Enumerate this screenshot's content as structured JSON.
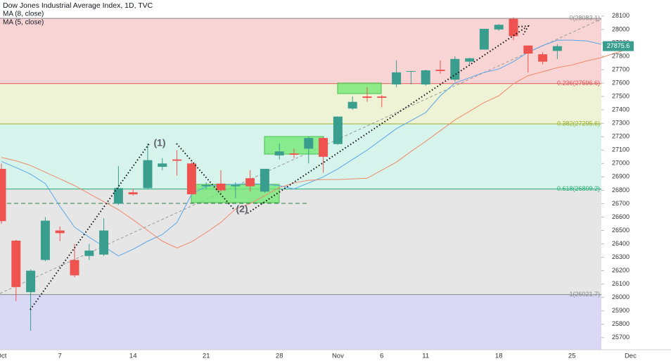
{
  "chart_data": {
    "type": "candlestick",
    "title": "Dow Jones Industrial Average Index, 1D, TVC",
    "categories": [
      "Oct",
      null,
      null,
      null,
      "7",
      null,
      null,
      null,
      null,
      "14",
      null,
      null,
      null,
      null,
      "21",
      null,
      null,
      null,
      null,
      "28",
      null,
      null,
      null,
      "Nov",
      null,
      null,
      "6",
      null,
      null,
      "11",
      null,
      null,
      null,
      null,
      "18",
      null,
      null,
      null,
      null,
      "25",
      null,
      null,
      null,
      "Dec",
      null
    ],
    "open": [
      26960,
      26424,
      26040,
      26280,
      26500,
      26280,
      26310,
      26320,
      26700,
      26785,
      26816,
      26975,
      27030,
      27000,
      26830,
      26850,
      26830,
      26890,
      26790,
      27060,
      27075,
      27110,
      27190,
      27145,
      27410,
      27500,
      27500,
      27590,
      27685,
      27590,
      27700,
      27625,
      27760,
      27850,
      28000,
      28080,
      27880,
      27815,
      27840,
      null,
      null,
      null,
      null,
      null,
      null
    ],
    "high": [
      27000,
      26430,
      26210,
      26600,
      26530,
      26400,
      26400,
      26590,
      26980,
      26810,
      27150,
      27040,
      27100,
      27010,
      26860,
      26950,
      26860,
      26950,
      26960,
      27150,
      27110,
      27200,
      27200,
      27350,
      27500,
      27570,
      27510,
      27770,
      27690,
      27700,
      27770,
      27800,
      27790,
      28005,
      28040,
      28090,
      27880,
      27830,
      27890,
      null,
      null,
      null,
      null,
      null,
      null
    ],
    "low": [
      26550,
      25973,
      25752,
      26270,
      26420,
      26150,
      26280,
      26310,
      26690,
      26760,
      26810,
      26950,
      26910,
      26770,
      26810,
      26790,
      26740,
      26790,
      26780,
      27030,
      27040,
      27000,
      26930,
      27140,
      27400,
      27460,
      27420,
      27570,
      27590,
      27580,
      27670,
      27610,
      27740,
      27850,
      27990,
      27920,
      27680,
      27740,
      27780,
      null,
      null,
      null,
      null,
      null,
      null
    ],
    "close": [
      26570,
      26078,
      26200,
      26573,
      26480,
      26165,
      26350,
      26500,
      26816,
      26770,
      27025,
      27000,
      27020,
      26770,
      26840,
      26800,
      26840,
      26830,
      26960,
      27090,
      27065,
      27190,
      27050,
      27350,
      27460,
      27490,
      27490,
      27680,
      27690,
      27695,
      27690,
      27780,
      27785,
      28005,
      28035,
      27950,
      27820,
      27760,
      27875.6,
      null,
      null,
      null,
      null,
      null,
      null
    ],
    "up_color": "#3a9e8f",
    "down_color": "#ef5350",
    "series": [
      {
        "name": "MA (8, close)",
        "color": "#5aa5e8",
        "values": [
          27015,
          26970,
          26920,
          26850,
          26680,
          26525,
          26450,
          26380,
          26310,
          26360,
          26420,
          26470,
          26560,
          26770,
          26830,
          26840,
          26845,
          26850,
          26845,
          26835,
          26810,
          26855,
          26900,
          26960,
          27030,
          27100,
          27180,
          27260,
          27320,
          27380,
          27505,
          27600,
          27640,
          27680,
          27705,
          27760,
          27830,
          27880,
          27920,
          27920,
          27915,
          27890,
          null,
          null,
          null
        ]
      },
      {
        "name": "MA (5, close)",
        "color": "#f0896a",
        "values": [
          27045,
          27020,
          26985,
          26935,
          26885,
          26835,
          26775,
          26715,
          26655,
          26580,
          26500,
          26420,
          26370,
          26415,
          26485,
          26560,
          26660,
          26700,
          26760,
          26820,
          26855,
          26875,
          26880,
          26880,
          26885,
          26890,
          26950,
          27010,
          27090,
          27165,
          27245,
          27325,
          27390,
          27455,
          27505,
          27595,
          27655,
          27685,
          27715,
          27735,
          27765,
          27790,
          27825,
          27860,
          null
        ]
      }
    ],
    "ylim": [
      25610,
      28220
    ],
    "yticks": [
      25700,
      25800,
      25900,
      26000,
      26100,
      26200,
      26300,
      26400,
      26500,
      26600,
      26700,
      26800,
      26900,
      27000,
      27100,
      27200,
      27300,
      27400,
      27500,
      27600,
      27700,
      27800,
      27900,
      28000,
      28100
    ],
    "grid": false,
    "fib_levels": [
      {
        "value": 28083.1,
        "label": "0(28083.1)",
        "color": "#888888",
        "fill": "#f8d4d4"
      },
      {
        "value": 27596.6,
        "label": "0.236(27596.6)",
        "color": "#e0575a",
        "fill": "#eef3d6"
      },
      {
        "value": 27295.6,
        "label": "0.382(27295.6)",
        "color": "#9cae2b",
        "fill": "#d6f4ec"
      },
      {
        "value": 26809.2,
        "label": "0.618(26809.2)",
        "color": "#22ab73",
        "fill": "#e6e6e6"
      },
      {
        "value": 26021.7,
        "label": "1(26021.7)",
        "color": "#888888",
        "fill": "#d9d9f6"
      }
    ],
    "last_price": 27875.6,
    "annotations": [
      "(1)",
      "(2)"
    ]
  }
}
